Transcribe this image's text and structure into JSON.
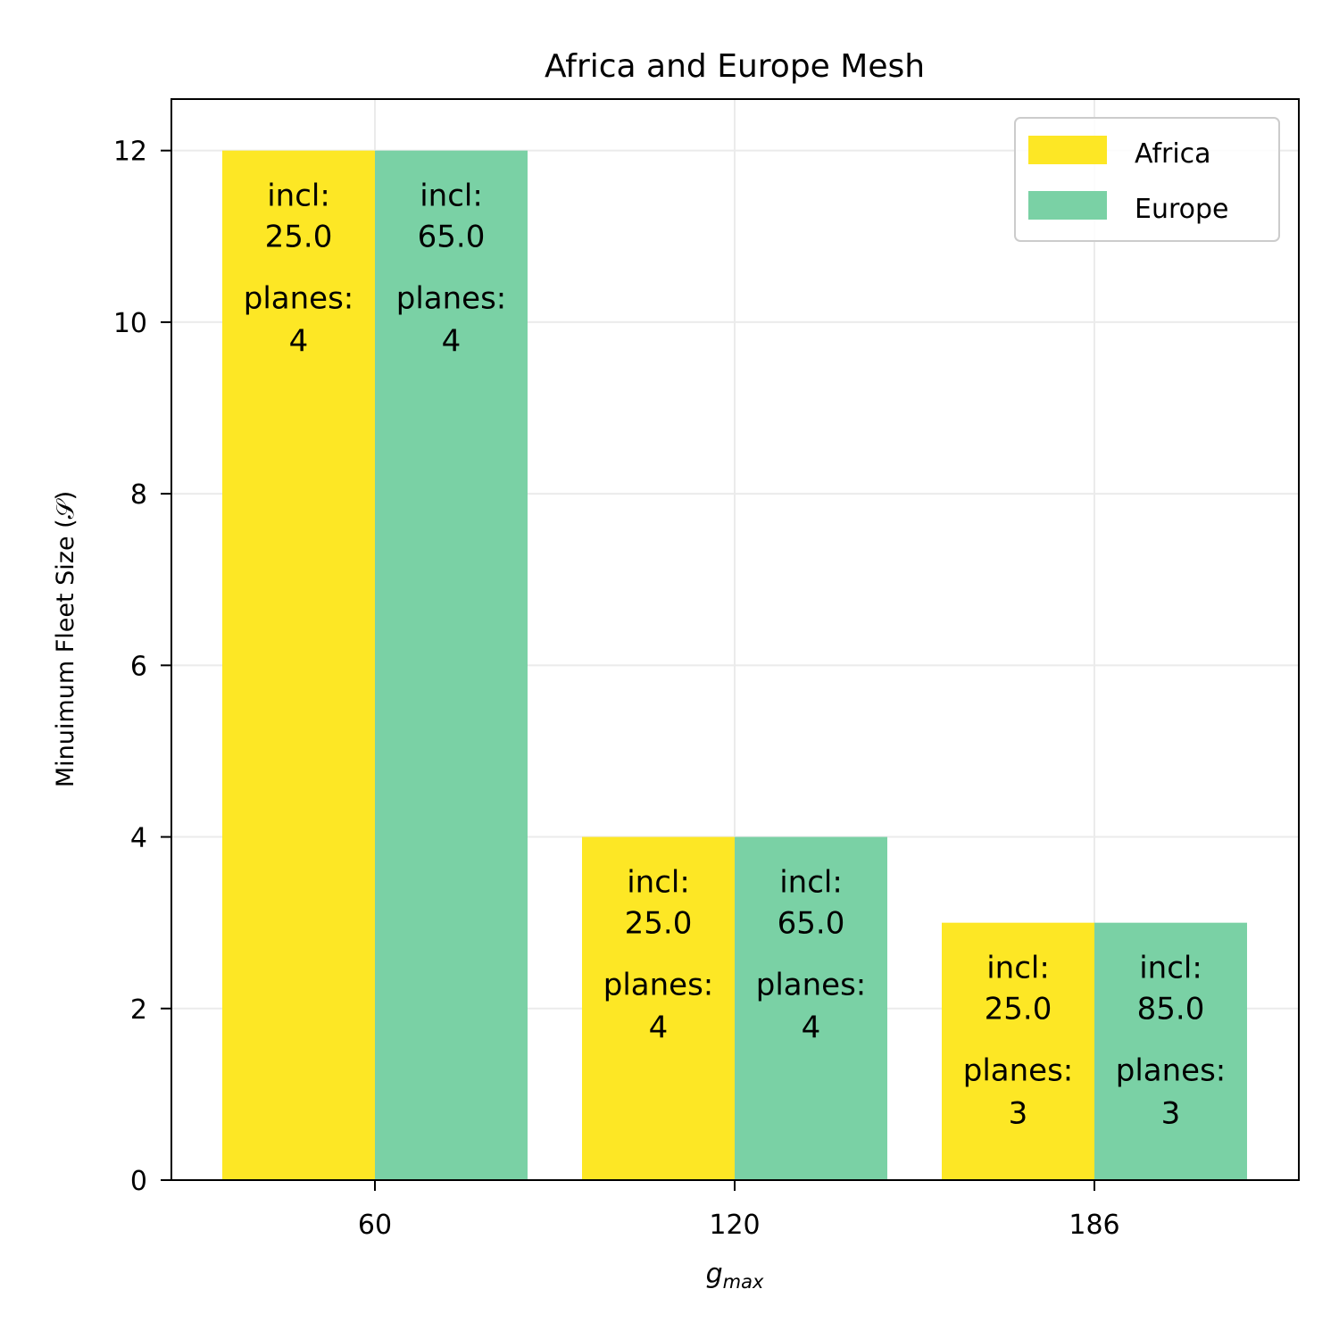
{
  "chart_data": {
    "type": "bar",
    "title": "Africa and Europe Mesh",
    "xlabel": "g",
    "xlabel_subscript": "max",
    "ylabel": "Minuimum Fleet Size (𝒮)",
    "categories": [
      "60",
      "120",
      "186"
    ],
    "ylim": [
      0,
      12.6
    ],
    "yticks": [
      "0",
      "2",
      "4",
      "6",
      "8",
      "10",
      "12"
    ],
    "grid": true,
    "legend_position": "top-right",
    "series": [
      {
        "name": "Africa",
        "color": "#fde725",
        "values": [
          12,
          4,
          3
        ],
        "annotations": [
          {
            "incl_label": "incl:",
            "incl_value": "25.0",
            "planes_label": "planes:",
            "planes_value": "4"
          },
          {
            "incl_label": "incl:",
            "incl_value": "25.0",
            "planes_label": "planes:",
            "planes_value": "4"
          },
          {
            "incl_label": "incl:",
            "incl_value": "25.0",
            "planes_label": "planes:",
            "planes_value": "3"
          }
        ]
      },
      {
        "name": "Europe",
        "color": "#7ad1a5",
        "values": [
          12,
          4,
          3
        ],
        "annotations": [
          {
            "incl_label": "incl:",
            "incl_value": "65.0",
            "planes_label": "planes:",
            "planes_value": "4"
          },
          {
            "incl_label": "incl:",
            "incl_value": "65.0",
            "planes_label": "planes:",
            "planes_value": "4"
          },
          {
            "incl_label": "incl:",
            "incl_value": "85.0",
            "planes_label": "planes:",
            "planes_value": "3"
          }
        ]
      }
    ]
  }
}
